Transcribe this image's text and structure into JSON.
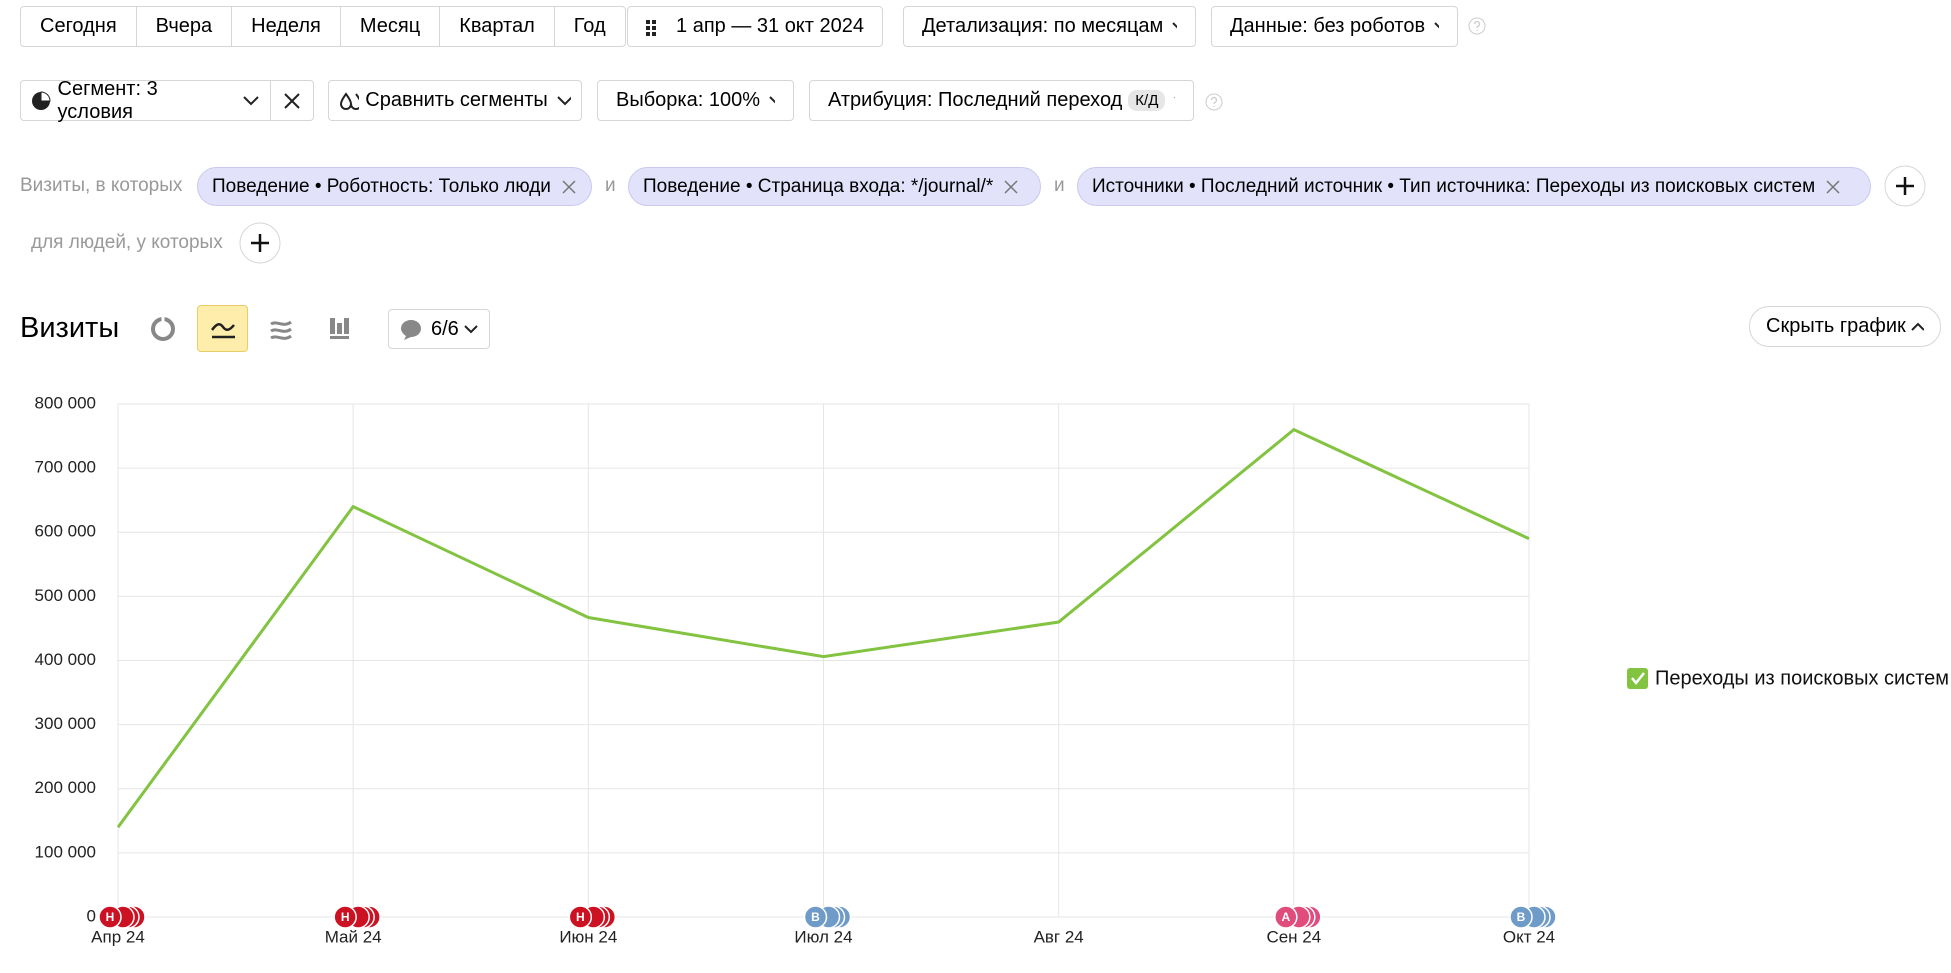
{
  "toolbar": {
    "periods": [
      "Сегодня",
      "Вчера",
      "Неделя",
      "Месяц",
      "Квартал",
      "Год"
    ],
    "date_range": "1 апр — 31 окт 2024",
    "detail": "Детализация: по месяцам",
    "data_filter": "Данные: без роботов"
  },
  "toolbar2": {
    "segment": "Сегмент: 3 условия",
    "compare": "Сравнить сегменты",
    "sample": "Выборка: 100%",
    "attribution": "Атрибуция: Последний переход",
    "attribution_badge": "К/Д"
  },
  "filters": {
    "prefix": "Визиты, в которых",
    "joiner": "и",
    "conditions": [
      "Поведение • Роботность: Только люди",
      "Поведение • Страница входа: */journal/*",
      "Источники • Последний источник • Тип источника: Переходы из поисковых систем"
    ],
    "people_prefix": "для людей, у которых"
  },
  "chart_header": {
    "title": "Визиты",
    "comments": "6/6",
    "hide": "Скрыть график"
  },
  "chart_data": {
    "type": "line",
    "categories": [
      "Апр 24",
      "Май 24",
      "Июн 24",
      "Июл 24",
      "Авг 24",
      "Сен 24",
      "Окт 24"
    ],
    "series": [
      {
        "name": "Переходы из поисковых систем",
        "color": "#82c341",
        "values": [
          140000,
          640000,
          467000,
          406000,
          460000,
          760000,
          590000
        ]
      }
    ],
    "ylim": [
      0,
      800000
    ],
    "yticks": [
      0,
      {
        "value": 100000,
        "label": "100 000"
      },
      {
        "value": 200000,
        "label": "200 000"
      },
      {
        "value": 300000,
        "label": "300 000"
      },
      {
        "value": 400000,
        "label": "400 000"
      },
      {
        "value": 500000,
        "label": "500 000"
      },
      {
        "value": 600000,
        "label": "600 000"
      },
      {
        "value": 700000,
        "label": "700 000"
      },
      {
        "value": 800000,
        "label": "800 000"
      }
    ],
    "grid": true,
    "annotation_labels": [
      "Н",
      "Н",
      "Н",
      "В",
      null,
      "А",
      "В"
    ],
    "annotation_colors": [
      "#cc1122",
      "#cc1122",
      "#cc1122",
      "#6f9bc8",
      null,
      "#e04c7c",
      "#6f9bc8"
    ]
  }
}
